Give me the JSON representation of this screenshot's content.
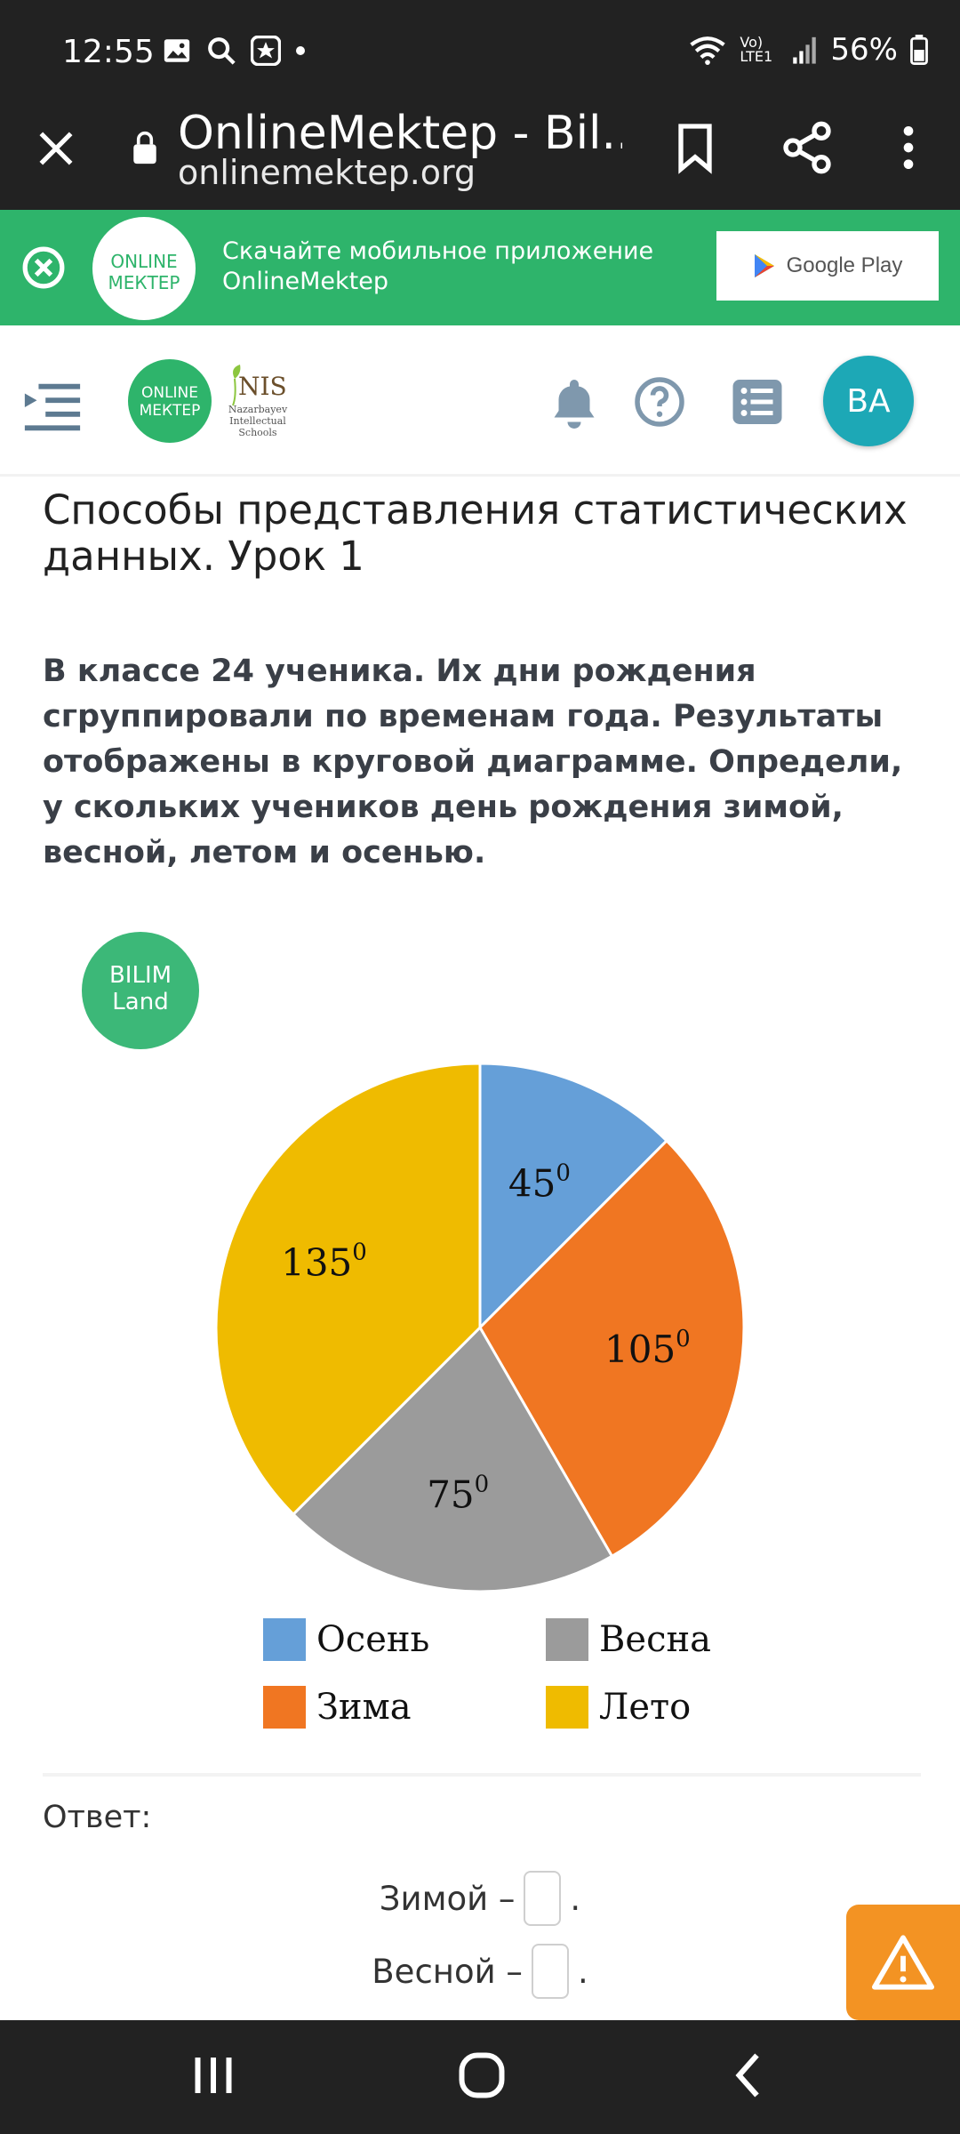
{
  "status_bar": {
    "time": "12:55",
    "network_label": "Vo) LTE1",
    "battery": "56%",
    "icons": [
      "image-icon",
      "search-icon",
      "star-badge-icon",
      "dot-icon",
      "wifi-icon",
      "signal-icon",
      "battery-icon"
    ]
  },
  "browser": {
    "title": "OnlineMektep - Bil...",
    "url": "onlinemektep.org",
    "icons": [
      "close-icon",
      "lock-icon",
      "bookmark-icon",
      "share-icon",
      "more-vert-icon"
    ]
  },
  "banner": {
    "logo_line1": "ONLINE",
    "logo_line2": "МЕКТЕР",
    "text_line1": "Скачайте мобильное приложение",
    "text_line2": "OnlineMektep",
    "store_label": "Google Play"
  },
  "header": {
    "logo_line1": "ONLINE",
    "logo_line2": "МЕКТЕР",
    "nis_word": "NIS",
    "nis_sub": "Nazarbayev Intellectual Schools",
    "avatar_initials": "BA",
    "icons": [
      "menu-icon",
      "bell-icon",
      "help-icon",
      "list-icon"
    ]
  },
  "content": {
    "title": "Способы представления статистических данных. Урок 1",
    "question": "В классе 24 ученика. Их дни рождения сгруппировали по временам года. Результаты отображены в круговой диаграмме. Определи, у скольких учеников день рождения зимой, весной, летом и осенью.",
    "bilim_line1": "BILIM",
    "bilim_line2": "Land",
    "answer_label": "Ответ:",
    "answers": [
      {
        "label": "Зимой –",
        "suffix": "."
      },
      {
        "label": "Весной –",
        "suffix": "."
      }
    ]
  },
  "chart_data": {
    "type": "pie",
    "unit_superscript": "0",
    "slices": [
      {
        "name": "Осень",
        "value": 45,
        "label": "45",
        "color": "#659fd8"
      },
      {
        "name": "Зима",
        "value": 105,
        "label": "105",
        "color": "#f07622"
      },
      {
        "name": "Весна",
        "value": 75,
        "label": "75",
        "color": "#9b9b9b"
      },
      {
        "name": "Лето",
        "value": 135,
        "label": "135",
        "color": "#efbb00"
      }
    ],
    "legend": [
      "Осень",
      "Весна",
      "Зима",
      "Лето"
    ]
  },
  "colors": {
    "bar_dark": "#222222",
    "banner_green": "#2eb46b",
    "avatar_teal": "#1da8b6",
    "report_orange": "#f39323"
  }
}
